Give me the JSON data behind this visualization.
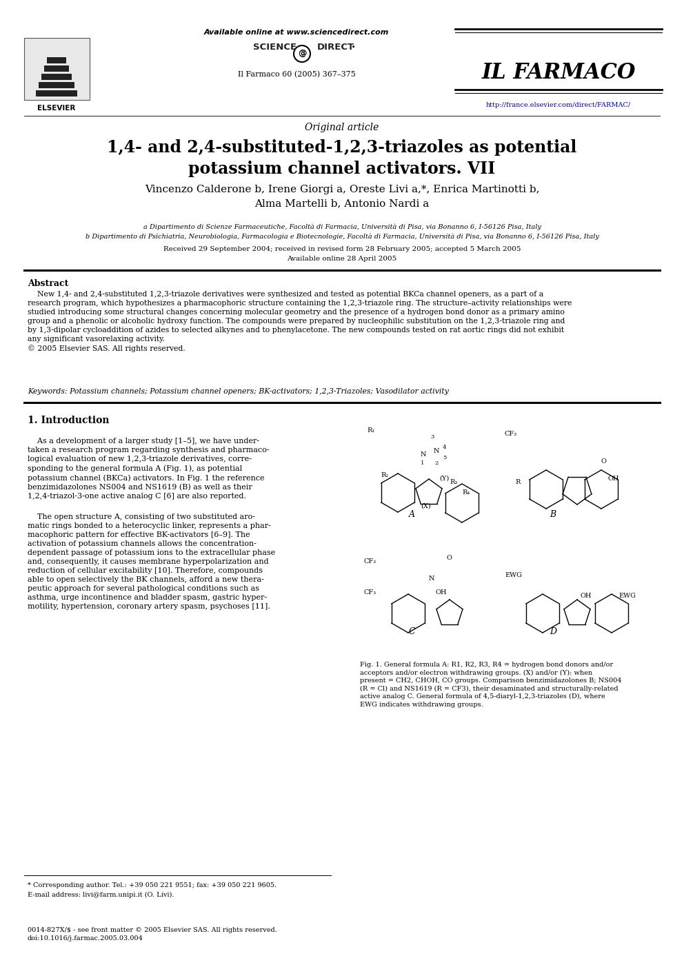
{
  "bg_color": "#ffffff",
  "text_color": "#000000",
  "title_main": "1,4- and 2,4-substituted-1,2,3-triazoles as potential\npotassium channel activators. VII",
  "authors": "Vincenzo Calderone b, Irene Giorgi a, Oreste Livi a,*, Enrica Martinotti b,\nAlma Martelli b, Antonio Nardi a",
  "affil_a": "a Dipartimento di Scienze Farmaceutiche, Facoltà di Farmacia, Università di Pisa, via Bonanno 6, I-56126 Pisa, Italy",
  "affil_b": "b Dipartimento di Psichiatria, Neurobiologia, Farmacologia e Biotecnologie, Facoltà di Farmacia, Università di Pisa, via Bonanno 6, I-56126 Pisa, Italy",
  "received": "Received 29 September 2004; received in revised form 28 February 2005; accepted 5 March 2005",
  "available": "Available online 28 April 2005",
  "journal_name": "IL FARMACO",
  "journal_ref": "Il Farmaco 60 (2005) 367–375",
  "journal_url": "http://france.elsevier.com/direct/FARMAC/",
  "sciencedirect": "Available online at www.sciencedirect.com",
  "elsevier": "ELSEVIER",
  "original_article": "Original article",
  "abstract_title": "Abstract",
  "abstract_text": "    New 1,4- and 2,4-substituted 1,2,3-triazole derivatives were synthesized and tested as potential BKCa channel openers, as a part of a\nresearch program, which hypothesizes a pharmacophoric structure containing the 1,2,3-triazole ring. The structure–activity relationships were\nstudied introducing some structural changes concerning molecular geometry and the presence of a hydrogen bond donor as a primary amino\ngroup and a phenolic or alcoholic hydroxy function. The compounds were prepared by nucleophilic substitution on the 1,2,3-triazole ring and\nby 1,3-dipolar cycloaddition of azides to selected alkynes and to phenylacetone. The new compounds tested on rat aortic rings did not exhibit\nany significant vasorelaxing activity.\n© 2005 Elsevier SAS. All rights reserved.",
  "keywords": "Keywords: Potassium channels; Potassium channel openers; BK-activators; 1,2,3-Triazoles; Vasodilator activity",
  "section1_title": "1. Introduction",
  "intro_col1_p1": "    As a development of a larger study [1–5], we have under-\ntaken a research program regarding synthesis and pharmaco-\nlogical evaluation of new 1,2,3-triazole derivatives, corre-\nsponding to the general formula A (Fig. 1), as potential\npotassium channel (BKCa) activators. In Fig. 1 the reference\nbenzimidazolones NS004 and NS1619 (B) as well as their\n1,2,4-triazol-3-one active analog C [6] are also reported.",
  "intro_col1_p2": "    The open structure A, consisting of two substituted aro-\nmatic rings bonded to a heterocyclic linker, represents a phar-\nmacophoric pattern for effective BK-activators [6–9]. The\nactivation of potassium channels allows the concentration-\ndependent passage of potassium ions to the extracellular phase\nand, consequently, it causes membrane hyperpolarization and\nreduction of cellular excitability [10]. Therefore, compounds\nable to open selectively the BK channels, afford a new thera-\npeutic approach for several pathological conditions such as\nasthma, urge incontinence and bladder spasm, gastric hyper-\nmotility, hypertension, coronary artery spasm, psychoses [11].",
  "fig_caption": "Fig. 1. General formula A: R1, R2, R3, R4 = hydrogen bond donors and/or\nacceptors and/or electron withdrawing groups. (X) and/or (Y): when\npresent = CH2, CHOH, CO groups. Comparison benzimidazolones B; NS004\n(R = Cl) and NS1619 (R = CF3), their desaminated and structurally-related\nactive analog C. General formula of 4,5-diaryl-1,2,3-triazoles (D), where\nEWG indicates withdrawing groups.",
  "footnote1": "* Corresponding author. Tel.: +39 050 221 9551; fax: +39 050 221 9605.",
  "footnote2": "E-mail address: livi@farm.unipi.it (O. Livi).",
  "copyright_footer": "0014-827X/$ - see front matter © 2005 Elsevier SAS. All rights reserved.\ndoi:10.1016/j.farmac.2005.03.004"
}
